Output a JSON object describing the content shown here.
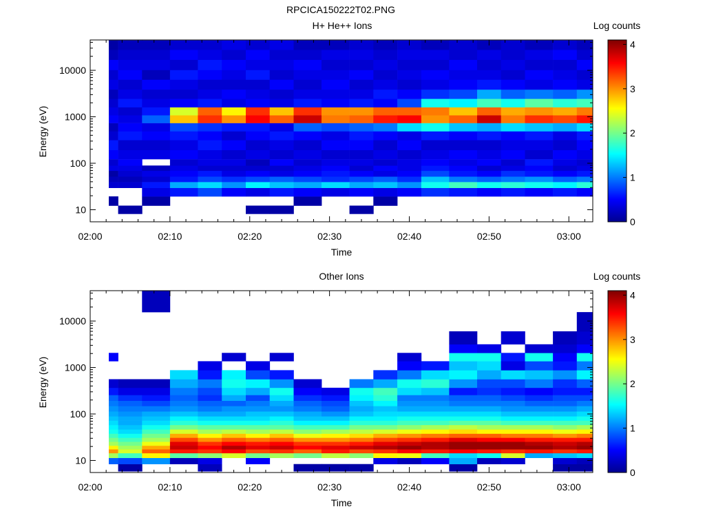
{
  "figure_title": "RPCICA150222T02.PNG",
  "colormap": [
    "#00008f",
    "#0000ff",
    "#0080ff",
    "#00ffff",
    "#80ff80",
    "#ffff00",
    "#ff8000",
    "#ff0000",
    "#800000"
  ],
  "chart_data": [
    {
      "type": "heatmap",
      "title": "H+ He++ Ions",
      "xlabel": "Time",
      "ylabel": "Energy (eV)",
      "yscale": "log",
      "ylim": [
        5.5,
        45000
      ],
      "xlim": [
        "02:00",
        "03:03"
      ],
      "x_ticks": [
        "02:00",
        "02:10",
        "02:20",
        "02:30",
        "02:40",
        "02:50",
        "03:00"
      ],
      "y_ticks": [
        "10",
        "100",
        "1000",
        "10000"
      ],
      "colorbar": {
        "label": "Log counts",
        "range": [
          0,
          4.1
        ],
        "ticks": [
          "0",
          "1",
          "2",
          "3",
          "4"
        ]
      },
      "time_bins": [
        "02:02",
        "02:05",
        "02:08",
        "02:12",
        "02:15",
        "02:18",
        "02:21",
        "02:24",
        "02:27",
        "02:31",
        "02:34",
        "02:37",
        "02:40",
        "02:43",
        "02:47",
        "02:50",
        "02:53",
        "02:56",
        "03:00",
        "03:02"
      ],
      "energy_bins_eV": [
        10,
        15,
        25,
        35,
        45,
        60,
        80,
        100,
        150,
        250,
        400,
        600,
        900,
        1300,
        2000,
        3000,
        5000,
        8000,
        13000,
        22000,
        35000
      ],
      "log_counts": [
        [
          null,
          0.1,
          null,
          0.3,
          0.2,
          0.1,
          0.4,
          0.3,
          0.5,
          0.6,
          0.3,
          0.2,
          0.5,
          0.4,
          0.3,
          0.2,
          0.4,
          0.3,
          0.5,
          0.2,
          0.1
        ],
        [
          0.1,
          null,
          null,
          0.3,
          0.2,
          0.3,
          0.4,
          0.5,
          0.4,
          0.3,
          0.6,
          0.5,
          0.4,
          0.3,
          0.6,
          0.4,
          0.3,
          0.5,
          0.4,
          0.3,
          0.2
        ],
        [
          null,
          0.1,
          0.4,
          0.6,
          0.3,
          0.4,
          0.2,
          null,
          0.4,
          0.3,
          0.5,
          0.4,
          0.9,
          0.6,
          0.4,
          0.3,
          0.5,
          0.2,
          0.4,
          0.3,
          0.2
        ],
        [
          null,
          null,
          0.6,
          1.2,
          0.6,
          0.5,
          0.4,
          0.3,
          0.5,
          0.4,
          0.6,
          0.8,
          2.8,
          2.4,
          0.5,
          0.3,
          0.4,
          0.6,
          0.3,
          0.5,
          0.3
        ],
        [
          null,
          null,
          0.8,
          1.4,
          0.8,
          0.6,
          0.3,
          0.4,
          0.4,
          0.6,
          0.5,
          0.7,
          3.4,
          3.2,
          0.6,
          0.4,
          0.3,
          0.5,
          0.6,
          0.4,
          0.3
        ],
        [
          null,
          null,
          0.5,
          1.1,
          0.7,
          0.4,
          0.3,
          0.4,
          0.3,
          0.5,
          0.3,
          0.6,
          3.0,
          2.6,
          0.4,
          0.5,
          0.3,
          0.4,
          0.5,
          0.3,
          0.4
        ],
        [
          0.1,
          null,
          0.4,
          1.5,
          0.8,
          0.5,
          0.3,
          0.2,
          0.4,
          0.3,
          0.5,
          0.6,
          3.6,
          3.4,
          0.5,
          0.4,
          0.3,
          0.6,
          0.4,
          0.5,
          0.3
        ],
        [
          0.1,
          null,
          0.6,
          1.3,
          0.9,
          0.4,
          0.3,
          0.5,
          0.3,
          0.4,
          0.6,
          0.4,
          3.2,
          2.8,
          0.4,
          0.3,
          0.5,
          0.3,
          0.4,
          0.3,
          0.4
        ],
        [
          null,
          0.1,
          0.5,
          1.2,
          0.8,
          0.5,
          0.4,
          0.3,
          0.4,
          0.3,
          0.5,
          0.9,
          3.8,
          3.4,
          0.6,
          0.4,
          0.3,
          0.4,
          0.5,
          0.3,
          0.2
        ],
        [
          null,
          null,
          0.4,
          1.4,
          0.7,
          0.6,
          0.5,
          0.4,
          0.3,
          0.5,
          0.4,
          0.8,
          3.1,
          3.0,
          0.5,
          0.4,
          0.5,
          0.4,
          0.3,
          0.4,
          0.2
        ],
        [
          0.1,
          null,
          0.5,
          1.2,
          0.8,
          0.5,
          0.3,
          0.4,
          0.3,
          0.5,
          0.6,
          0.9,
          3.2,
          3.0,
          0.6,
          0.4,
          0.3,
          0.5,
          0.3,
          0.4,
          0.3
        ],
        [
          null,
          0.1,
          0.4,
          1.3,
          0.9,
          0.4,
          0.5,
          0.3,
          0.4,
          0.3,
          0.5,
          1.0,
          3.5,
          3.2,
          0.5,
          0.6,
          0.4,
          0.3,
          0.4,
          0.3,
          0.2
        ],
        [
          null,
          null,
          0.5,
          1.1,
          0.7,
          0.5,
          0.4,
          0.4,
          0.3,
          0.5,
          0.4,
          1.4,
          3.6,
          3.2,
          0.8,
          0.5,
          0.3,
          0.4,
          0.3,
          0.4,
          0.3
        ],
        [
          null,
          null,
          0.7,
          1.6,
          1.3,
          0.8,
          0.6,
          0.5,
          0.4,
          0.3,
          0.6,
          1.6,
          3.0,
          3.1,
          1.6,
          0.7,
          0.4,
          0.5,
          0.3,
          0.4,
          0.2
        ],
        [
          null,
          null,
          0.6,
          1.8,
          1.0,
          0.6,
          0.5,
          0.4,
          0.5,
          0.3,
          0.5,
          1.3,
          3.2,
          2.8,
          1.5,
          0.8,
          0.5,
          0.4,
          0.5,
          0.3,
          0.3
        ],
        [
          null,
          null,
          0.5,
          1.6,
          0.9,
          0.5,
          0.3,
          0.5,
          0.4,
          0.3,
          0.6,
          1.2,
          3.8,
          3.2,
          1.8,
          1.2,
          0.6,
          0.4,
          0.3,
          0.4,
          0.2
        ],
        [
          null,
          null,
          0.6,
          1.7,
          1.0,
          0.7,
          0.4,
          0.3,
          0.5,
          0.4,
          0.5,
          1.4,
          3.1,
          2.9,
          1.6,
          0.9,
          0.5,
          0.3,
          0.4,
          0.3,
          0.3
        ],
        [
          null,
          null,
          0.5,
          1.6,
          1.1,
          0.6,
          0.5,
          0.6,
          0.3,
          0.4,
          0.6,
          1.3,
          3.4,
          3.0,
          1.9,
          1.0,
          0.4,
          0.5,
          0.3,
          0.4,
          0.2
        ],
        [
          null,
          null,
          0.6,
          1.5,
          0.9,
          0.5,
          0.3,
          0.4,
          0.5,
          0.3,
          0.4,
          1.2,
          3.3,
          2.9,
          1.7,
          0.9,
          0.5,
          0.4,
          0.3,
          0.5,
          0.3
        ],
        [
          null,
          null,
          0.5,
          1.7,
          1.0,
          0.6,
          0.4,
          0.3,
          0.4,
          0.5,
          0.6,
          1.4,
          3.5,
          3.1,
          1.8,
          1.1,
          0.4,
          0.3,
          0.5,
          0.3,
          0.2
        ]
      ]
    },
    {
      "type": "heatmap",
      "title": "Other Ions",
      "xlabel": "Time",
      "ylabel": "Energy (eV)",
      "yscale": "log",
      "ylim": [
        5.5,
        45000
      ],
      "xlim": [
        "02:00",
        "03:03"
      ],
      "x_ticks": [
        "02:00",
        "02:10",
        "02:20",
        "02:30",
        "02:40",
        "02:50",
        "03:00"
      ],
      "y_ticks": [
        "10",
        "100",
        "1000",
        "10000"
      ],
      "colorbar": {
        "label": "Log counts",
        "range": [
          0,
          4.1
        ],
        "ticks": [
          "0",
          "1",
          "2",
          "3",
          "4"
        ]
      },
      "time_bins": [
        "02:02",
        "02:05",
        "02:08",
        "02:12",
        "02:15",
        "02:18",
        "02:21",
        "02:24",
        "02:27",
        "02:31",
        "02:34",
        "02:37",
        "02:40",
        "02:43",
        "02:47",
        "02:50",
        "02:53",
        "02:56",
        "03:00",
        "03:02"
      ],
      "energy_bins_eV": [
        7,
        10,
        13,
        16,
        19,
        23,
        28,
        34,
        42,
        52,
        65,
        80,
        100,
        130,
        170,
        220,
        300,
        450,
        700,
        1100,
        1700,
        2500,
        4000,
        9000,
        27000
      ],
      "log_counts": [
        [
          null,
          0.9,
          2.2,
          3.0,
          2.6,
          2.2,
          2.0,
          1.8,
          1.6,
          1.5,
          1.4,
          1.3,
          1.2,
          1.1,
          1.0,
          0.9,
          0.6,
          0.3,
          null,
          null,
          0.5,
          null,
          null,
          null,
          null
        ],
        [
          0.1,
          0.8,
          1.8,
          2.4,
          2.2,
          2.0,
          1.8,
          1.6,
          1.4,
          1.3,
          1.2,
          1.2,
          1.1,
          1.0,
          0.9,
          0.7,
          0.4,
          0.2,
          null,
          null,
          null,
          null,
          null,
          null,
          null
        ],
        [
          null,
          1.1,
          2.6,
          3.2,
          2.9,
          2.5,
          2.2,
          2.0,
          1.8,
          1.6,
          1.4,
          1.3,
          1.2,
          1.0,
          0.8,
          0.6,
          0.4,
          0.2,
          null,
          null,
          null,
          null,
          null,
          null,
          0.2
        ],
        [
          null,
          0.2,
          1.9,
          3.5,
          3.8,
          3.7,
          3.3,
          2.9,
          2.4,
          2.0,
          1.7,
          1.5,
          1.3,
          1.1,
          1.0,
          0.9,
          1.0,
          1.2,
          1.4,
          null,
          null,
          null,
          null,
          null,
          null
        ],
        [
          0.2,
          0.4,
          2.1,
          3.4,
          3.6,
          3.4,
          3.0,
          2.6,
          2.2,
          1.9,
          1.6,
          1.4,
          1.2,
          1.0,
          0.9,
          0.7,
          0.8,
          1.0,
          0.6,
          0.4,
          null,
          null,
          null,
          null,
          null
        ],
        [
          null,
          null,
          2.4,
          3.6,
          3.9,
          3.6,
          3.2,
          2.8,
          2.3,
          1.9,
          1.6,
          1.4,
          1.2,
          1.1,
          0.9,
          1.2,
          1.4,
          1.6,
          1.5,
          null,
          0.3,
          null,
          null,
          null,
          null
        ],
        [
          null,
          0.5,
          2.0,
          3.3,
          3.7,
          3.5,
          3.1,
          2.6,
          2.2,
          1.9,
          1.6,
          1.4,
          1.3,
          1.1,
          1.0,
          0.8,
          1.2,
          1.5,
          0.8,
          0.4,
          null,
          null,
          null,
          null,
          null
        ],
        [
          null,
          null,
          2.2,
          3.4,
          3.8,
          3.6,
          3.2,
          2.8,
          2.3,
          1.9,
          1.7,
          1.5,
          1.3,
          1.1,
          1.2,
          1.4,
          1.6,
          1.1,
          0.6,
          null,
          0.3,
          null,
          null,
          null,
          null
        ],
        [
          0.1,
          null,
          2.0,
          3.2,
          3.6,
          3.4,
          3.0,
          2.5,
          2.1,
          1.8,
          1.5,
          1.3,
          1.2,
          1.0,
          0.9,
          0.7,
          0.5,
          0.3,
          null,
          null,
          null,
          null,
          null,
          null,
          null
        ],
        [
          0.1,
          null,
          2.3,
          3.5,
          3.7,
          3.4,
          3.0,
          2.6,
          2.2,
          1.8,
          1.5,
          1.3,
          1.1,
          0.9,
          0.8,
          0.6,
          0.4,
          null,
          null,
          null,
          null,
          null,
          null,
          null,
          null
        ],
        [
          0.1,
          null,
          2.1,
          3.3,
          3.8,
          3.5,
          3.1,
          2.7,
          2.3,
          2.0,
          1.7,
          1.5,
          1.3,
          1.2,
          1.3,
          1.5,
          1.6,
          1.0,
          null,
          null,
          null,
          null,
          null,
          null,
          null
        ],
        [
          null,
          0.4,
          2.6,
          3.4,
          3.9,
          3.7,
          3.3,
          2.9,
          2.4,
          2.0,
          1.7,
          1.5,
          1.4,
          1.3,
          1.5,
          1.7,
          1.8,
          1.2,
          0.7,
          null,
          null,
          null,
          null,
          null,
          null
        ],
        [
          null,
          0.2,
          2.5,
          3.6,
          4.0,
          3.8,
          3.4,
          3.0,
          2.5,
          2.1,
          1.8,
          1.6,
          1.4,
          1.2,
          1.1,
          1.0,
          1.4,
          1.6,
          1.0,
          0.5,
          0.3,
          null,
          null,
          null,
          null
        ],
        [
          null,
          0.5,
          1.8,
          3.5,
          3.9,
          3.9,
          3.5,
          3.1,
          2.6,
          2.2,
          1.8,
          1.6,
          1.4,
          1.2,
          1.1,
          1.0,
          1.3,
          1.7,
          1.4,
          0.6,
          null,
          null,
          null,
          null,
          null
        ],
        [
          0.1,
          1.2,
          1.4,
          3.6,
          4.0,
          4.0,
          3.7,
          3.2,
          2.7,
          2.3,
          1.9,
          1.6,
          1.4,
          1.2,
          1.0,
          0.9,
          0.6,
          1.1,
          1.5,
          1.3,
          1.6,
          0.5,
          0.2,
          null,
          null
        ],
        [
          null,
          0.2,
          1.6,
          3.5,
          4.0,
          4.0,
          3.6,
          3.2,
          2.6,
          2.2,
          1.9,
          1.6,
          1.4,
          1.2,
          1.0,
          0.9,
          0.7,
          0.8,
          1.2,
          1.4,
          1.6,
          0.4,
          null,
          null,
          null
        ],
        [
          null,
          0.3,
          2.4,
          3.4,
          4.0,
          4.0,
          3.6,
          3.1,
          2.6,
          2.2,
          1.8,
          1.5,
          1.3,
          1.1,
          1.0,
          0.8,
          0.6,
          0.8,
          1.4,
          0.4,
          0.6,
          null,
          0.3,
          null,
          null
        ],
        [
          null,
          null,
          1.2,
          3.5,
          4.0,
          3.9,
          3.5,
          3.1,
          2.6,
          2.2,
          1.8,
          1.5,
          1.3,
          1.1,
          0.9,
          0.7,
          0.5,
          1.0,
          1.3,
          0.8,
          1.6,
          0.3,
          null,
          null,
          null
        ],
        [
          0.1,
          0.3,
          1.3,
          3.4,
          3.9,
          3.8,
          3.5,
          3.0,
          2.5,
          2.1,
          1.8,
          1.5,
          1.3,
          1.1,
          0.9,
          0.8,
          0.6,
          0.7,
          1.1,
          0.6,
          0.5,
          0.3,
          0.2,
          null,
          null
        ],
        [
          0.1,
          0.2,
          1.4,
          3.5,
          4.0,
          3.9,
          3.5,
          3.1,
          2.6,
          2.2,
          1.8,
          1.6,
          1.4,
          1.2,
          1.0,
          0.8,
          0.6,
          0.9,
          1.5,
          1.0,
          1.6,
          0.5,
          0.3,
          0.2,
          null
        ]
      ]
    }
  ]
}
